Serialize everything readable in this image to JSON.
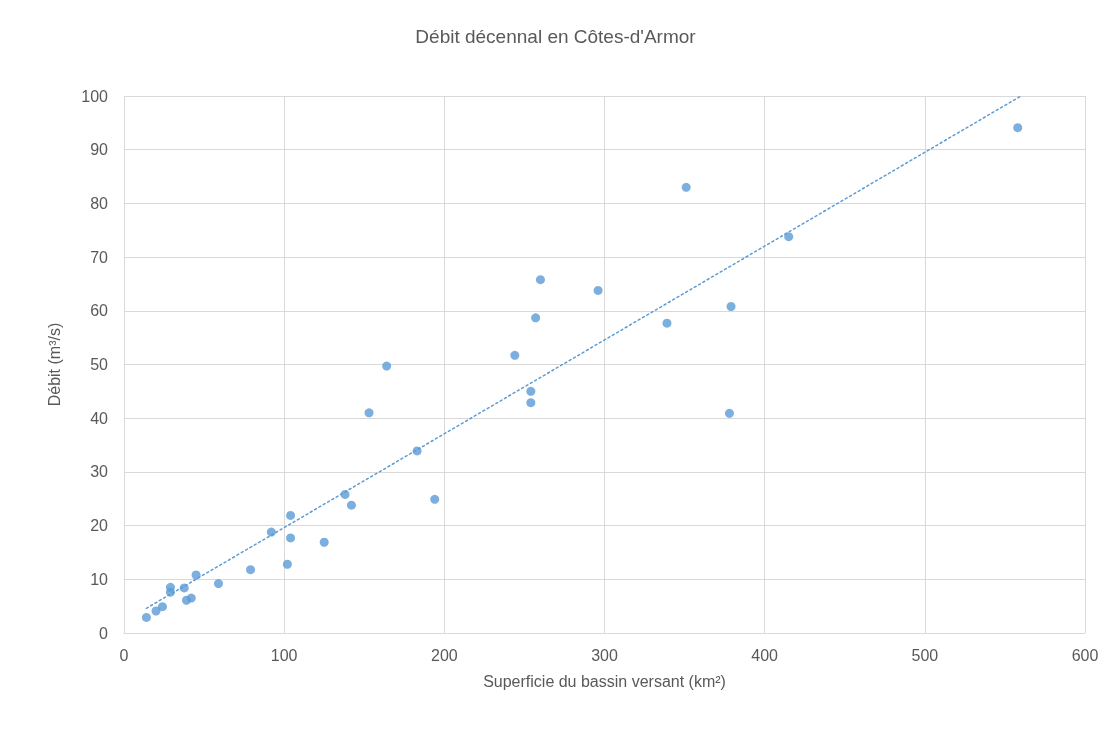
{
  "chart_data": {
    "type": "scatter",
    "title": "Débit décennal en Côtes-d'Armor",
    "xlabel": "Superficie du bassin versant (km²)",
    "ylabel": "Débit (m³/s)",
    "xlim": [
      0,
      600
    ],
    "xticks": [
      0,
      100,
      200,
      300,
      400,
      500,
      600
    ],
    "ylim": [
      0,
      100
    ],
    "yticks": [
      0,
      10,
      20,
      30,
      40,
      50,
      60,
      70,
      80,
      90,
      100
    ],
    "grid": true,
    "marker": "circle",
    "series": [
      {
        "color": "#5b9bd5",
        "x": [
          14,
          20,
          24,
          29,
          29,
          37.6,
          39,
          42,
          45,
          59,
          79,
          92,
          102,
          104,
          104,
          125,
          138,
          142,
          153,
          164,
          183,
          194,
          244,
          254,
          254,
          257,
          260,
          296,
          339,
          351,
          378,
          379,
          415,
          558
        ],
        "values": [
          2.9,
          4.1,
          4.9,
          8.5,
          7.6,
          8.4,
          6.1,
          6.5,
          10.8,
          9.2,
          11.8,
          18.8,
          12.8,
          17.7,
          21.9,
          16.9,
          25.8,
          23.8,
          41,
          49.7,
          33.9,
          24.9,
          51.7,
          45,
          42.9,
          58.7,
          65.8,
          63.8,
          57.7,
          83,
          40.9,
          60.8,
          73.8,
          94.1
        ]
      },
      {
        "type": "line",
        "color": "#5b9bd5",
        "line_style": "dotted",
        "marker": "none",
        "x": [
          14,
          560
        ],
        "values": [
          4.6,
          100
        ]
      }
    ]
  }
}
